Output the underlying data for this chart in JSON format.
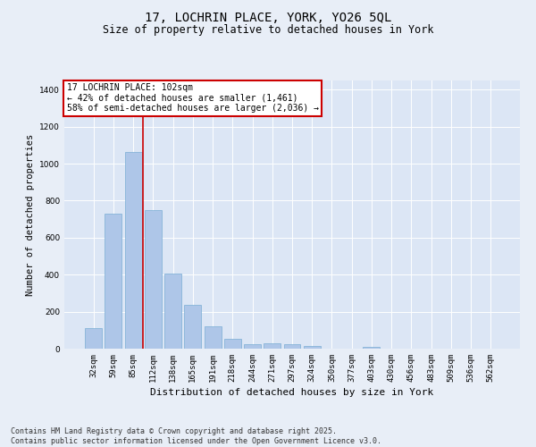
{
  "title_line1": "17, LOCHRIN PLACE, YORK, YO26 5QL",
  "title_line2": "Size of property relative to detached houses in York",
  "xlabel": "Distribution of detached houses by size in York",
  "ylabel": "Number of detached properties",
  "categories": [
    "32sqm",
    "59sqm",
    "85sqm",
    "112sqm",
    "138sqm",
    "165sqm",
    "191sqm",
    "218sqm",
    "244sqm",
    "271sqm",
    "297sqm",
    "324sqm",
    "350sqm",
    "377sqm",
    "403sqm",
    "430sqm",
    "456sqm",
    "483sqm",
    "509sqm",
    "536sqm",
    "562sqm"
  ],
  "values": [
    110,
    730,
    1065,
    750,
    405,
    235,
    120,
    55,
    22,
    28,
    22,
    15,
    0,
    0,
    10,
    0,
    0,
    0,
    0,
    0,
    0
  ],
  "bar_color": "#aec6e8",
  "bar_edge_color": "#7aadd4",
  "vline_index": 3,
  "vline_color": "#cc0000",
  "annotation_text": "17 LOCHRIN PLACE: 102sqm\n← 42% of detached houses are smaller (1,461)\n58% of semi-detached houses are larger (2,036) →",
  "annotation_box_color": "#cc0000",
  "bg_color": "#e8eef7",
  "plot_bg_color": "#dce6f5",
  "ylim": [
    0,
    1450
  ],
  "yticks": [
    0,
    200,
    400,
    600,
    800,
    1000,
    1200,
    1400
  ],
  "footer_line1": "Contains HM Land Registry data © Crown copyright and database right 2025.",
  "footer_line2": "Contains public sector information licensed under the Open Government Licence v3.0.",
  "title_fontsize": 10,
  "subtitle_fontsize": 8.5,
  "xlabel_fontsize": 8,
  "ylabel_fontsize": 7.5,
  "tick_fontsize": 6.5,
  "footer_fontsize": 6,
  "annot_fontsize": 7
}
